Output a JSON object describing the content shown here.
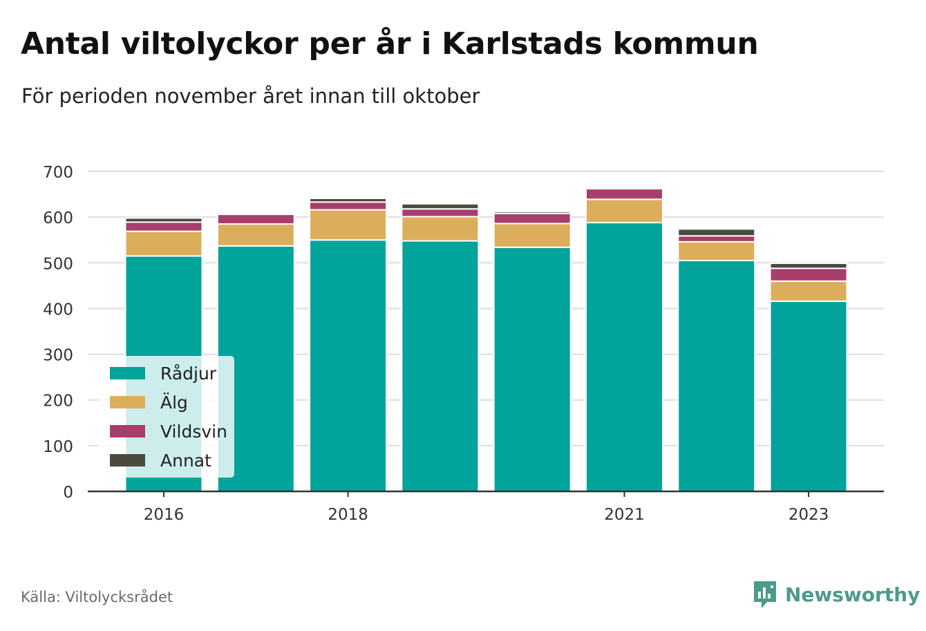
{
  "header": {
    "title": "Antal viltolyckor per år i Karlstads kommun",
    "subtitle": "För perioden november året innan till oktober"
  },
  "footer": {
    "source": "Källa: Viltolycksrådet",
    "brand": "Newsworthy",
    "brand_icon": "newsworthy-logo-icon"
  },
  "chart_data": {
    "type": "bar",
    "stacked": true,
    "categories": [
      "2016",
      "2017",
      "2018",
      "2019",
      "2020",
      "2021",
      "2022",
      "2023"
    ],
    "x_tick_labels": [
      "2016",
      "",
      "2018",
      "",
      "",
      "2021",
      "",
      "2023"
    ],
    "series": [
      {
        "name": "Rådjur",
        "color": "#00a49a",
        "values": [
          515,
          537,
          550,
          548,
          534,
          588,
          505,
          416
        ]
      },
      {
        "name": "Älg",
        "color": "#dcae5c",
        "values": [
          54,
          48,
          66,
          53,
          52,
          51,
          41,
          44
        ]
      },
      {
        "name": "Vildsvin",
        "color": "#a83e6b",
        "values": [
          20,
          21,
          17,
          17,
          22,
          23,
          13,
          28
        ]
      },
      {
        "name": "Annat",
        "color": "#4a4a3f",
        "values": [
          9,
          0,
          8,
          11,
          4,
          0,
          15,
          11
        ]
      }
    ],
    "y_ticks": [
      0,
      100,
      200,
      300,
      400,
      500,
      600,
      700
    ],
    "ylim": [
      0,
      700
    ],
    "xlabel": "",
    "ylabel": "",
    "grid": true,
    "legend": "bottom-left"
  }
}
